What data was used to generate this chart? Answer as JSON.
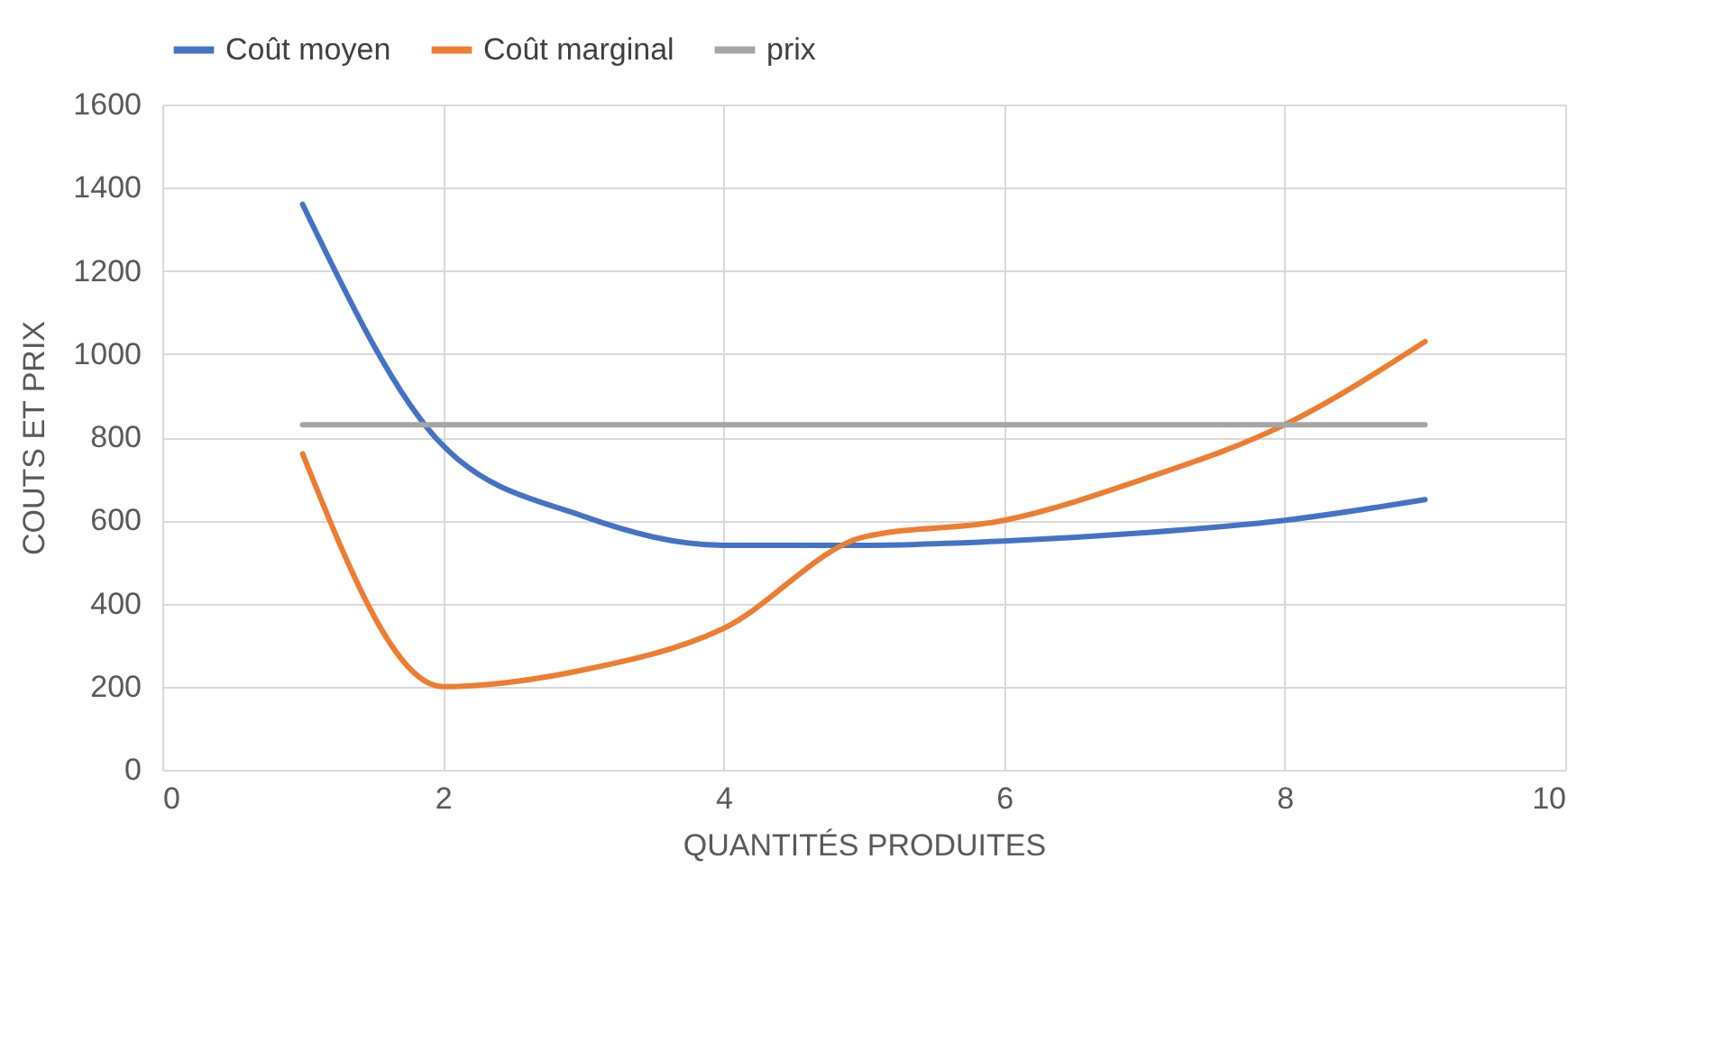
{
  "chart_data": {
    "type": "line",
    "xlabel": "QUANTITÉS PRODUITES",
    "ylabel": "COUTS ET PRIX",
    "x": [
      1,
      2,
      3,
      4,
      5,
      6,
      7,
      8,
      9
    ],
    "series": [
      {
        "name": "Coût moyen",
        "color": "#4472c4",
        "values": [
          1360,
          780,
          610,
          540,
          540,
          550,
          570,
          600,
          650
        ]
      },
      {
        "name": "Coût marginal",
        "color": "#ed7d31",
        "values": [
          760,
          200,
          240,
          340,
          560,
          600,
          700,
          830,
          1030
        ]
      },
      {
        "name": "prix",
        "color": "#a5a5a5",
        "values": [
          830,
          830,
          830,
          830,
          830,
          830,
          830,
          830,
          830
        ]
      }
    ],
    "xlim": [
      0,
      10
    ],
    "xticks": [
      0,
      2,
      4,
      6,
      8,
      10
    ],
    "ylim": [
      0,
      1600
    ],
    "yticks": [
      0,
      200,
      400,
      600,
      800,
      1000,
      1200,
      1400,
      1600
    ],
    "grid": true,
    "legend": "top"
  }
}
